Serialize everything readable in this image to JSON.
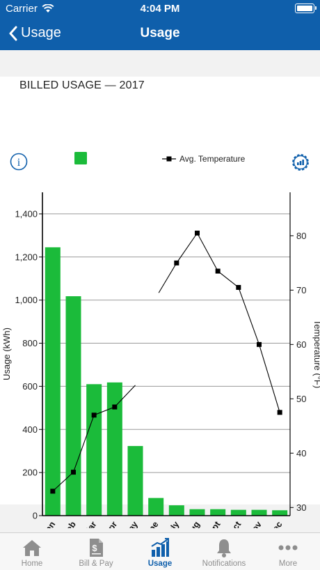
{
  "status_bar": {
    "carrier": "Carrier",
    "time": "4:04 PM",
    "battery_level": 1.0
  },
  "nav": {
    "back_label": "Usage",
    "title": "Usage"
  },
  "section": {
    "title": "BILLED USAGE — 2017"
  },
  "legend": {
    "temperature_label": "Avg. Temperature"
  },
  "colors": {
    "brand": "#0f5fab",
    "bar": "#1bbb3a",
    "line": "#000000",
    "grid": "#9a9a9a"
  },
  "icons": {
    "info": "info-circle-icon",
    "settings": "chart-gear-icon"
  },
  "chart_data": {
    "type": "bar",
    "categories": [
      "Jan",
      "Feb",
      "Mar",
      "Apr",
      "May",
      "June",
      "July",
      "Aug",
      "Sept",
      "Oct",
      "Nov",
      "Dec"
    ],
    "series": [
      {
        "name": "",
        "axis": "left",
        "values": [
          1245,
          1018,
          610,
          618,
          323,
          82,
          48,
          30,
          30,
          27,
          27,
          25
        ]
      },
      {
        "name": "Avg. Temperature",
        "type": "line",
        "axis": "right",
        "values": [
          33,
          36.5,
          47,
          48.5,
          52.5,
          null,
          75,
          80.5,
          73.5,
          70.5,
          60,
          47.5
        ],
        "note_points": [
          [
            "June",
            69.5
          ]
        ]
      }
    ],
    "ylabel": "Usage (kWh)",
    "y2label": "Temperature (°F)",
    "ylim": [
      0,
      1500
    ],
    "yticks": [
      "0",
      "200",
      "400",
      "600",
      "800",
      "1,000",
      "1,200",
      "1,400"
    ],
    "ytick_values": [
      0,
      200,
      400,
      600,
      800,
      1000,
      1200,
      1400
    ],
    "y2lim": [
      28.5,
      88
    ],
    "y2ticks": [
      "30",
      "40",
      "50",
      "60",
      "70",
      "80"
    ],
    "y2tick_values": [
      30,
      40,
      50,
      60,
      70,
      80
    ],
    "grid": true
  },
  "tabs": [
    {
      "label": "Home",
      "icon": "home-icon",
      "active": false
    },
    {
      "label": "Bill & Pay",
      "icon": "bill-icon",
      "active": false
    },
    {
      "label": "Usage",
      "icon": "usage-chart-icon",
      "active": true
    },
    {
      "label": "Notifications",
      "icon": "bell-icon",
      "active": false
    },
    {
      "label": "More",
      "icon": "more-icon",
      "active": false
    }
  ]
}
